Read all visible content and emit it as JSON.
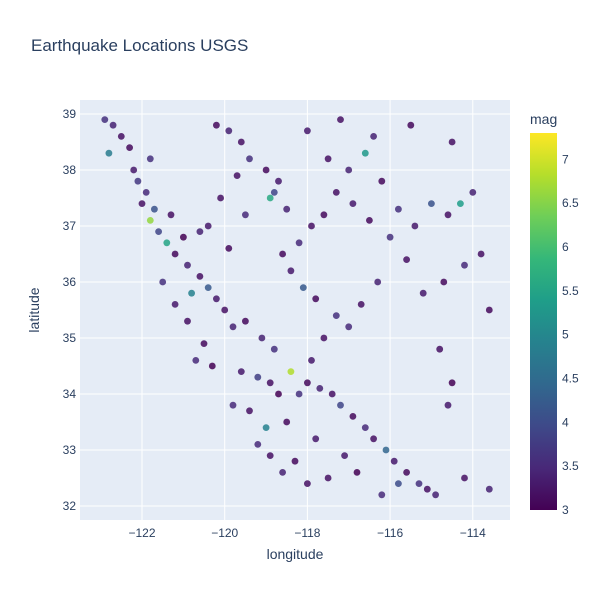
{
  "chart_data": {
    "type": "scatter",
    "title": "Earthquake Locations USGS",
    "xlabel": "longitude",
    "ylabel": "latitude",
    "xlim": [
      -123.5,
      -113.1
    ],
    "ylim": [
      31.75,
      39.25
    ],
    "x_ticks": [
      -122,
      -120,
      -118,
      -116,
      -114
    ],
    "x_tick_labels": [
      "−122",
      "−120",
      "−118",
      "−116",
      "−114"
    ],
    "y_ticks": [
      32,
      33,
      34,
      35,
      36,
      37,
      38,
      39
    ],
    "y_tick_labels": [
      "32",
      "33",
      "34",
      "35",
      "36",
      "37",
      "38",
      "39"
    ],
    "grid": true,
    "colorbar": {
      "title": "mag",
      "range": [
        3,
        7.3
      ],
      "ticks": [
        3,
        3.5,
        4,
        4.5,
        5,
        5.5,
        6,
        6.5,
        7
      ],
      "tick_labels": [
        "3",
        "3.5",
        "4",
        "4.5",
        "5",
        "5.5",
        "6",
        "6.5",
        "7"
      ],
      "colorscale": "Viridis",
      "colors": [
        "#440154",
        "#482878",
        "#3e4989",
        "#31688e",
        "#26828e",
        "#1f9e89",
        "#35b779",
        "#6ece58",
        "#b5de2b",
        "#fde725"
      ]
    },
    "marker_opacity": 0.85,
    "points": [
      [
        -122.7,
        38.8,
        3.4
      ],
      [
        -122.5,
        38.6,
        3.2
      ],
      [
        -122.9,
        38.9,
        3.6
      ],
      [
        -122.3,
        38.4,
        3.1
      ],
      [
        -122.2,
        38.0,
        3.3
      ],
      [
        -121.9,
        37.6,
        3.5
      ],
      [
        -122.8,
        38.3,
        4.8
      ],
      [
        -122.0,
        37.4,
        3.2
      ],
      [
        -121.8,
        37.1,
        6.6
      ],
      [
        -121.6,
        36.9,
        3.9
      ],
      [
        -121.4,
        36.7,
        5.5
      ],
      [
        -121.2,
        36.5,
        3.1
      ],
      [
        -120.9,
        36.3,
        3.4
      ],
      [
        -120.6,
        36.1,
        3.2
      ],
      [
        -120.4,
        35.9,
        4.2
      ],
      [
        -120.2,
        35.7,
        3.3
      ],
      [
        -121.0,
        36.8,
        3.0
      ],
      [
        -121.5,
        36.0,
        3.6
      ],
      [
        -120.8,
        35.8,
        4.9
      ],
      [
        -121.3,
        37.2,
        3.2
      ],
      [
        -122.1,
        37.8,
        3.7
      ],
      [
        -121.7,
        37.3,
        4.1
      ],
      [
        -120.0,
        35.5,
        3.2
      ],
      [
        -119.8,
        35.2,
        3.4
      ],
      [
        -120.5,
        34.9,
        3.1
      ],
      [
        -120.7,
        34.6,
        3.5
      ],
      [
        -120.3,
        34.5,
        3.0
      ],
      [
        -119.6,
        34.4,
        3.3
      ],
      [
        -119.2,
        34.3,
        3.8
      ],
      [
        -118.9,
        34.2,
        3.2
      ],
      [
        -118.4,
        34.4,
        6.8
      ],
      [
        -118.2,
        34.0,
        3.6
      ],
      [
        -118.0,
        34.2,
        3.1
      ],
      [
        -117.7,
        34.1,
        3.4
      ],
      [
        -117.4,
        34.0,
        3.2
      ],
      [
        -117.2,
        33.8,
        3.9
      ],
      [
        -116.9,
        33.6,
        3.1
      ],
      [
        -116.6,
        33.4,
        3.5
      ],
      [
        -116.4,
        33.2,
        3.2
      ],
      [
        -116.1,
        33.0,
        4.4
      ],
      [
        -115.9,
        32.8,
        3.3
      ],
      [
        -115.6,
        32.6,
        3.1
      ],
      [
        -115.3,
        32.4,
        3.6
      ],
      [
        -115.1,
        32.3,
        3.2
      ],
      [
        -114.9,
        32.2,
        3.4
      ],
      [
        -116.8,
        32.6,
        3.0
      ],
      [
        -117.1,
        32.9,
        3.3
      ],
      [
        -117.5,
        32.5,
        3.2
      ],
      [
        -116.2,
        32.2,
        3.5
      ],
      [
        -115.8,
        32.4,
        4.0
      ],
      [
        -118.3,
        32.8,
        3.1
      ],
      [
        -118.6,
        32.6,
        3.4
      ],
      [
        -118.0,
        32.4,
        3.2
      ],
      [
        -117.8,
        33.2,
        3.3
      ],
      [
        -118.5,
        33.5,
        3.1
      ],
      [
        -119.0,
        33.4,
        4.9
      ],
      [
        -119.4,
        33.7,
        3.2
      ],
      [
        -119.8,
        33.8,
        3.5
      ],
      [
        -118.7,
        34.0,
        3.0
      ],
      [
        -117.9,
        34.6,
        3.3
      ],
      [
        -117.6,
        35.0,
        3.2
      ],
      [
        -117.3,
        35.4,
        3.6
      ],
      [
        -117.8,
        35.7,
        3.1
      ],
      [
        -118.1,
        35.9,
        4.2
      ],
      [
        -118.4,
        36.2,
        3.3
      ],
      [
        -118.6,
        36.5,
        3.1
      ],
      [
        -118.2,
        36.7,
        3.5
      ],
      [
        -117.9,
        37.0,
        3.2
      ],
      [
        -118.5,
        37.3,
        3.4
      ],
      [
        -118.8,
        37.6,
        3.9
      ],
      [
        -118.9,
        37.5,
        5.6
      ],
      [
        -118.7,
        37.8,
        3.3
      ],
      [
        -119.0,
        38.0,
        3.1
      ],
      [
        -119.4,
        38.2,
        3.6
      ],
      [
        -119.6,
        38.5,
        3.2
      ],
      [
        -119.9,
        38.7,
        3.4
      ],
      [
        -120.2,
        38.8,
        3.1
      ],
      [
        -119.5,
        37.2,
        3.5
      ],
      [
        -120.1,
        37.5,
        3.2
      ],
      [
        -120.4,
        37.0,
        3.3
      ],
      [
        -117.5,
        38.2,
        3.2
      ],
      [
        -117.0,
        38.0,
        3.4
      ],
      [
        -116.6,
        38.3,
        5.3
      ],
      [
        -116.2,
        37.8,
        3.1
      ],
      [
        -115.8,
        37.3,
        3.6
      ],
      [
        -115.4,
        37.0,
        3.3
      ],
      [
        -115.0,
        37.4,
        4.1
      ],
      [
        -114.6,
        37.2,
        3.2
      ],
      [
        -114.3,
        37.4,
        5.4
      ],
      [
        -114.0,
        37.6,
        3.4
      ],
      [
        -113.8,
        36.5,
        3.2
      ],
      [
        -114.2,
        36.3,
        3.5
      ],
      [
        -114.7,
        36.0,
        3.1
      ],
      [
        -115.2,
        35.8,
        3.3
      ],
      [
        -115.6,
        36.4,
        3.2
      ],
      [
        -116.0,
        36.8,
        3.6
      ],
      [
        -116.5,
        37.1,
        3.1
      ],
      [
        -116.3,
        36.0,
        3.4
      ],
      [
        -116.7,
        35.6,
        3.2
      ],
      [
        -117.0,
        35.2,
        3.5
      ],
      [
        -114.5,
        38.5,
        3.2
      ],
      [
        -115.5,
        38.8,
        3.1
      ],
      [
        -116.4,
        38.6,
        3.4
      ],
      [
        -117.2,
        38.9,
        3.2
      ],
      [
        -118.0,
        38.7,
        3.3
      ],
      [
        -113.6,
        35.5,
        3.1
      ],
      [
        -114.8,
        34.8,
        3.2
      ],
      [
        -114.5,
        34.2,
        3.0
      ],
      [
        -114.6,
        33.8,
        3.3
      ],
      [
        -113.6,
        32.3,
        3.4
      ],
      [
        -114.2,
        32.5,
        3.2
      ],
      [
        -119.1,
        35.0,
        3.4
      ],
      [
        -119.5,
        35.3,
        3.1
      ],
      [
        -118.8,
        34.8,
        3.6
      ],
      [
        -120.9,
        35.3,
        3.2
      ],
      [
        -121.2,
        35.6,
        3.3
      ],
      [
        -119.9,
        36.6,
        3.1
      ],
      [
        -120.6,
        36.9,
        3.4
      ],
      [
        -118.9,
        32.9,
        3.2
      ],
      [
        -119.2,
        33.1,
        3.5
      ],
      [
        -117.3,
        37.6,
        3.2
      ],
      [
        -116.9,
        37.4,
        3.3
      ],
      [
        -117.6,
        37.2,
        3.1
      ],
      [
        -119.7,
        37.9,
        3.2
      ],
      [
        -121.8,
        38.2,
        3.6
      ]
    ]
  }
}
